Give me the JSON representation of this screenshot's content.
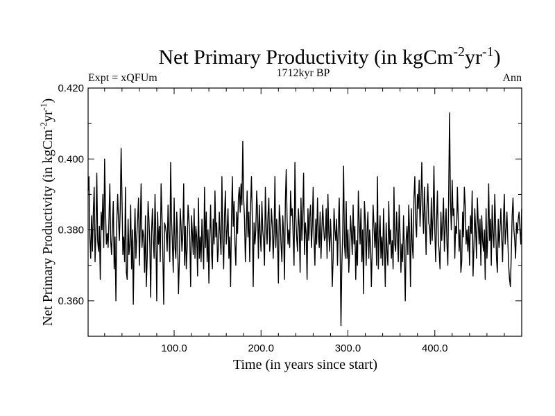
{
  "chart_data": {
    "type": "line",
    "title_main": "Net Primary Productivity (in kgCm",
    "title_sup1": "-2",
    "title_mid": "yr",
    "title_sup2": "-1",
    "title_end": ")",
    "subtitle_left": "Expt = xQFUm",
    "subtitle_center": "1712kyr BP",
    "subtitle_right": "Ann",
    "xlabel": "Time (in years since start)",
    "ylabel_main": "Net Primary Productivity (in kgCm",
    "ylabel_sup1": "-2",
    "ylabel_mid": "yr",
    "ylabel_sup2": "-1",
    "ylabel_end": ")",
    "xlim": [
      1,
      500
    ],
    "ylim": [
      0.35,
      0.42
    ],
    "x_ticks": [
      100,
      200,
      300,
      400
    ],
    "x_tick_labels": [
      "100.0",
      "200.0",
      "300.0",
      "400.0"
    ],
    "y_ticks": [
      0.36,
      0.38,
      0.4,
      0.42
    ],
    "y_tick_labels": [
      "0.360",
      "0.380",
      "0.400",
      "0.420"
    ],
    "series": [
      {
        "name": "Net Primary Productivity",
        "color": "#000000",
        "x_start": 1,
        "x_step": 1,
        "values": [
          0.391,
          0.395,
          0.378,
          0.372,
          0.384,
          0.374,
          0.385,
          0.392,
          0.371,
          0.379,
          0.396,
          0.377,
          0.374,
          0.381,
          0.366,
          0.385,
          0.38,
          0.39,
          0.375,
          0.4,
          0.386,
          0.376,
          0.379,
          0.375,
          0.383,
          0.393,
          0.377,
          0.373,
          0.381,
          0.388,
          0.369,
          0.378,
          0.36,
          0.382,
          0.39,
          0.383,
          0.377,
          0.386,
          0.403,
          0.389,
          0.373,
          0.378,
          0.371,
          0.392,
          0.368,
          0.366,
          0.383,
          0.373,
          0.376,
          0.387,
          0.369,
          0.38,
          0.359,
          0.376,
          0.386,
          0.372,
          0.378,
          0.383,
          0.389,
          0.37,
          0.381,
          0.393,
          0.375,
          0.38,
          0.378,
          0.368,
          0.384,
          0.364,
          0.372,
          0.388,
          0.383,
          0.376,
          0.361,
          0.379,
          0.386,
          0.377,
          0.372,
          0.39,
          0.378,
          0.36,
          0.385,
          0.376,
          0.381,
          0.371,
          0.393,
          0.384,
          0.373,
          0.359,
          0.382,
          0.381,
          0.379,
          0.374,
          0.387,
          0.379,
          0.371,
          0.399,
          0.383,
          0.376,
          0.368,
          0.389,
          0.375,
          0.372,
          0.385,
          0.378,
          0.362,
          0.371,
          0.386,
          0.381,
          0.374,
          0.379,
          0.393,
          0.37,
          0.381,
          0.369,
          0.375,
          0.387,
          0.383,
          0.378,
          0.364,
          0.384,
          0.379,
          0.373,
          0.386,
          0.372,
          0.381,
          0.378,
          0.367,
          0.389,
          0.372,
          0.378,
          0.371,
          0.383,
          0.376,
          0.369,
          0.392,
          0.375,
          0.385,
          0.371,
          0.38,
          0.365,
          0.378,
          0.387,
          0.374,
          0.369,
          0.383,
          0.376,
          0.391,
          0.378,
          0.382,
          0.371,
          0.375,
          0.385,
          0.378,
          0.373,
          0.395,
          0.377,
          0.369,
          0.384,
          0.391,
          0.376,
          0.38,
          0.386,
          0.372,
          0.378,
          0.364,
          0.383,
          0.395,
          0.381,
          0.388,
          0.376,
          0.37,
          0.385,
          0.379,
          0.389,
          0.392,
          0.385,
          0.393,
          0.387,
          0.405,
          0.389,
          0.383,
          0.371,
          0.38,
          0.391,
          0.378,
          0.385,
          0.371,
          0.387,
          0.395,
          0.383,
          0.364,
          0.382,
          0.376,
          0.38,
          0.391,
          0.385,
          0.372,
          0.387,
          0.379,
          0.374,
          0.388,
          0.38,
          0.377,
          0.37,
          0.392,
          0.381,
          0.376,
          0.384,
          0.389,
          0.374,
          0.378,
          0.386,
          0.381,
          0.372,
          0.379,
          0.395,
          0.375,
          0.383,
          0.377,
          0.365,
          0.387,
          0.383,
          0.376,
          0.371,
          0.384,
          0.379,
          0.366,
          0.388,
          0.397,
          0.383,
          0.376,
          0.38,
          0.375,
          0.391,
          0.384,
          0.386,
          0.378,
          0.37,
          0.399,
          0.384,
          0.378,
          0.374,
          0.386,
          0.381,
          0.368,
          0.389,
          0.377,
          0.384,
          0.396,
          0.373,
          0.382,
          0.379,
          0.366,
          0.386,
          0.377,
          0.384,
          0.387,
          0.375,
          0.381,
          0.392,
          0.378,
          0.37,
          0.383,
          0.376,
          0.389,
          0.379,
          0.375,
          0.385,
          0.372,
          0.38,
          0.387,
          0.381,
          0.377,
          0.378,
          0.386,
          0.372,
          0.39,
          0.379,
          0.374,
          0.383,
          0.376,
          0.364,
          0.372,
          0.386,
          0.38,
          0.377,
          0.383,
          0.37,
          0.381,
          0.389,
          0.376,
          0.353,
          0.37,
          0.379,
          0.398,
          0.376,
          0.372,
          0.388,
          0.372,
          0.38,
          0.368,
          0.374,
          0.384,
          0.379,
          0.373,
          0.387,
          0.376,
          0.381,
          0.366,
          0.377,
          0.37,
          0.391,
          0.382,
          0.376,
          0.386,
          0.371,
          0.38,
          0.362,
          0.388,
          0.383,
          0.37,
          0.379,
          0.385,
          0.372,
          0.38,
          0.376,
          0.364,
          0.375,
          0.387,
          0.381,
          0.375,
          0.382,
          0.37,
          0.395,
          0.369,
          0.378,
          0.384,
          0.372,
          0.378,
          0.37,
          0.386,
          0.376,
          0.364,
          0.382,
          0.374,
          0.37,
          0.388,
          0.376,
          0.38,
          0.372,
          0.377,
          0.369,
          0.392,
          0.376,
          0.374,
          0.385,
          0.378,
          0.371,
          0.387,
          0.379,
          0.368,
          0.376,
          0.371,
          0.384,
          0.374,
          0.36,
          0.377,
          0.381,
          0.373,
          0.387,
          0.379,
          0.364,
          0.386,
          0.376,
          0.372,
          0.389,
          0.395,
          0.382,
          0.378,
          0.39,
          0.386,
          0.394,
          0.381,
          0.388,
          0.399,
          0.386,
          0.379,
          0.392,
          0.383,
          0.373,
          0.387,
          0.393,
          0.382,
          0.381,
          0.376,
          0.389,
          0.377,
          0.384,
          0.398,
          0.38,
          0.371,
          0.382,
          0.391,
          0.377,
          0.374,
          0.369,
          0.385,
          0.377,
          0.382,
          0.389,
          0.374,
          0.381,
          0.386,
          0.376,
          0.37,
          0.391,
          0.413,
          0.388,
          0.38,
          0.394,
          0.384,
          0.386,
          0.372,
          0.381,
          0.379,
          0.392,
          0.383,
          0.374,
          0.38,
          0.368,
          0.371,
          0.385,
          0.378,
          0.392,
          0.387,
          0.376,
          0.38,
          0.374,
          0.381,
          0.37,
          0.384,
          0.379,
          0.391,
          0.367,
          0.375,
          0.386,
          0.38,
          0.372,
          0.389,
          0.382,
          0.376,
          0.383,
          0.37,
          0.384,
          0.377,
          0.374,
          0.38,
          0.366,
          0.386,
          0.372,
          0.378,
          0.393,
          0.377,
          0.383,
          0.37,
          0.387,
          0.379,
          0.375,
          0.39,
          0.381,
          0.372,
          0.368,
          0.383,
          0.375,
          0.38,
          0.386,
          0.378,
          0.371,
          0.383,
          0.39,
          0.376,
          0.38,
          0.385,
          0.377,
          0.37,
          0.366,
          0.364,
          0.373,
          0.384,
          0.389,
          0.38,
          0.377,
          0.372,
          0.382,
          0.379,
          0.383,
          0.385,
          0.38,
          0.376,
          0.386
        ]
      }
    ]
  }
}
